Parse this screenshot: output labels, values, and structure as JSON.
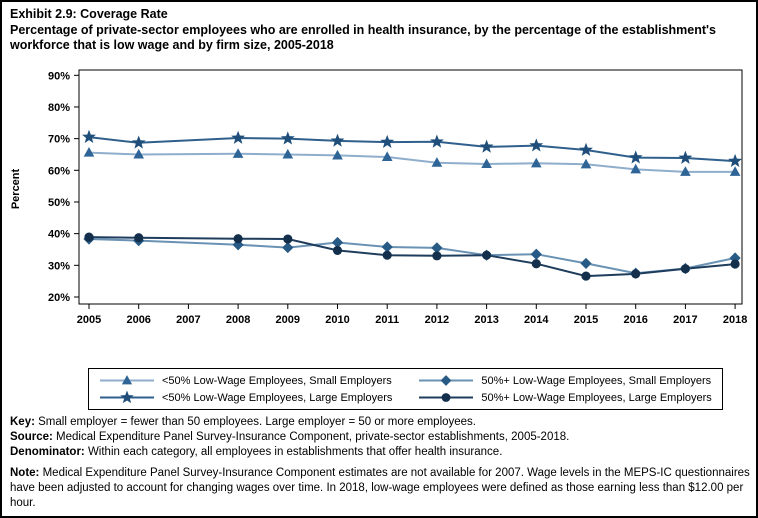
{
  "page": {
    "title_line1": "Exhibit 2.9: Coverage Rate",
    "title_line2": "Percentage of private-sector employees who are enrolled in health insurance, by the percentage of the establishment's workforce that is low wage and by firm size, 2005-2018"
  },
  "chart_data": {
    "type": "line",
    "ylabel": "Percent",
    "y_ticks": [
      20,
      30,
      40,
      50,
      60,
      70,
      80,
      90
    ],
    "y_tick_suffix": "%",
    "ylim": [
      17.5,
      92
    ],
    "grid": "off",
    "legend_position": "bottom-box",
    "x": [
      2005,
      2006,
      2007,
      2008,
      2009,
      2010,
      2011,
      2012,
      2013,
      2014,
      2015,
      2016,
      2017,
      2018
    ],
    "x_tick_labels": [
      "2005",
      "2006",
      "2007",
      "2008",
      "2009",
      "2010",
      "2011",
      "2012",
      "2013",
      "2014",
      "2015",
      "2016",
      "2017",
      "2018"
    ],
    "missing_data_note": "2007 values not available; lines connect 2006 to 2008",
    "series": [
      {
        "name": "<50% Low-Wage Employees, Small Employers",
        "slug": "lt50-small",
        "marker": "triangle",
        "marker_color": "#2E6496",
        "line_color": "#8FAECC",
        "values": [
          65.6,
          65.0,
          null,
          65.2,
          65.0,
          64.7,
          64.2,
          62.4,
          62.0,
          62.2,
          61.9,
          60.3,
          59.5,
          59.5
        ]
      },
      {
        "name": "<50% Low-Wage Employees, Large Employers",
        "slug": "lt50-large",
        "marker": "star",
        "marker_color": "#1E4E79",
        "line_color": "#2F5F8C",
        "values": [
          70.5,
          68.7,
          null,
          70.2,
          70.0,
          69.3,
          68.9,
          69.0,
          67.4,
          67.8,
          66.4,
          64.0,
          63.9,
          62.9
        ]
      },
      {
        "name": "50%+ Low-Wage Employees, Small Employers",
        "slug": "ge50-small",
        "marker": "diamond",
        "marker_color": "#275A84",
        "line_color": "#6A92B4",
        "values": [
          38.3,
          37.8,
          null,
          36.5,
          35.6,
          37.2,
          35.8,
          35.5,
          33.2,
          33.5,
          30.6,
          27.5,
          29.0,
          32.3
        ]
      },
      {
        "name": "50%+ Low-Wage Employees, Large Employers",
        "slug": "ge50-large",
        "marker": "circle",
        "marker_color": "#132F4B",
        "line_color": "#1E3C5C",
        "values": [
          38.9,
          38.7,
          null,
          38.4,
          38.3,
          34.7,
          33.2,
          33.0,
          33.2,
          30.5,
          26.6,
          27.3,
          28.9,
          30.4
        ]
      }
    ],
    "legend_columns": [
      [
        0,
        1
      ],
      [
        2,
        3
      ]
    ]
  },
  "footer": {
    "key_label": "Key:",
    "key_text": "Small employer = fewer than 50 employees. Large employer = 50 or more employees.",
    "source_label": "Source:",
    "source_text": "Medical Expenditure Panel Survey-Insurance Component, private-sector establishments, 2005-2018.",
    "denominator_label": "Denominator:",
    "denominator_text": "Within each category, all employees in establishments that offer health insurance.",
    "note_label": "Note:",
    "note_text": "Medical Expenditure Panel Survey-Insurance Component estimates are not available for 2007. Wage levels in the MEPS-IC questionnaires have been adjusted to account for changing wages over time. In 2018, low-wage employees were defined as those earning less than $12.00 per hour."
  }
}
